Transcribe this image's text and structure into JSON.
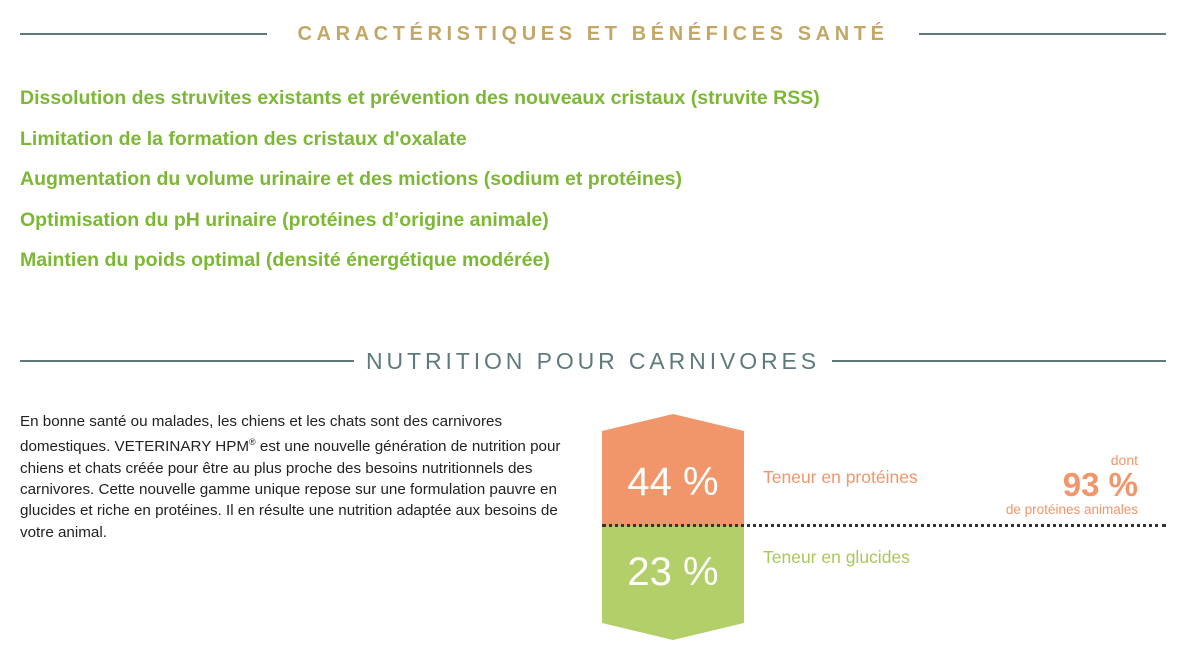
{
  "benefits_section": {
    "title": "CARACTÉRISTIQUES ET BÉNÉFICES SANTÉ",
    "items": [
      "Dissolution des struvites existants et prévention des nouveaux cristaux (struvite RSS)",
      "Limitation de la formation des cristaux d'oxalate",
      "Augmentation du volume urinaire et des mictions (sodium et protéines)",
      "Optimisation du pH urinaire (protéines d’origine animale)",
      "Maintien du poids optimal (densité énergétique modérée)"
    ]
  },
  "nutrition_section": {
    "title": "NUTRITION POUR CARNIVORES",
    "intro_part1": "En bonne santé ou malades, les chiens et les chats sont des carnivores domestiques. VETERINARY HPM",
    "intro_sup": "®",
    "intro_part2": " est une nouvelle génération de nutrition pour chiens et chats créée pour être au plus proche des besoins nutritionnels des carnivores. Cette nouvelle gamme unique repose sur une formulation pauvre en glucides et riche en protéines. Il en résulte une nutrition adaptée aux besoins de votre animal.",
    "protein": {
      "value": "44 %",
      "label": "Teneur en protéines"
    },
    "carbs": {
      "value": "23 %",
      "label": "Teneur en glucides"
    },
    "animal_protein": {
      "prefix": "dont",
      "value": "93 %",
      "label": "de protéines animales"
    }
  },
  "colors": {
    "gold": "#c3a766",
    "green_text": "#7cb836",
    "slate": "#5f7a7c",
    "orange": "#f0966a",
    "light_green": "#b2cf69"
  }
}
